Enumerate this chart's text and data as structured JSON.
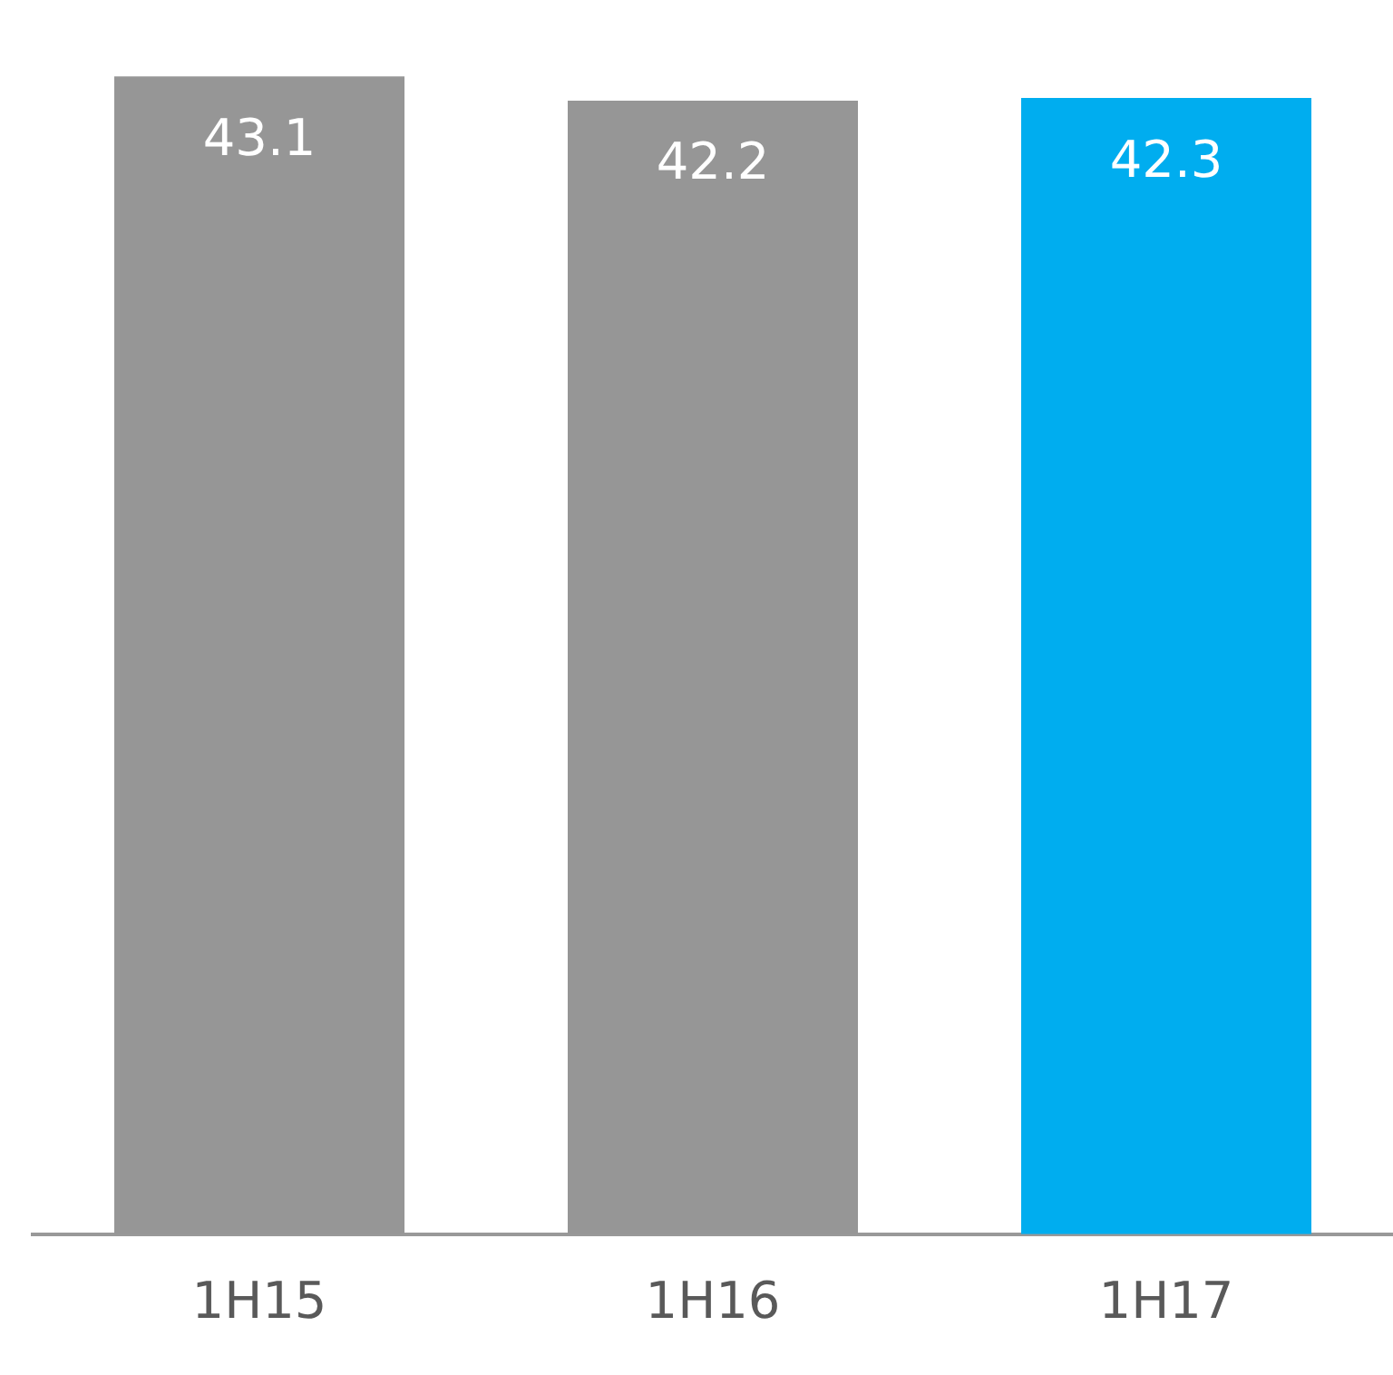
{
  "chart_data": {
    "type": "bar",
    "categories": [
      "1H15",
      "1H16",
      "1H17"
    ],
    "values": [
      43.1,
      42.2,
      42.3
    ],
    "colors": [
      "#969696",
      "#969696",
      "#00adef"
    ],
    "data_labels": true,
    "grid": false,
    "legend": false
  }
}
